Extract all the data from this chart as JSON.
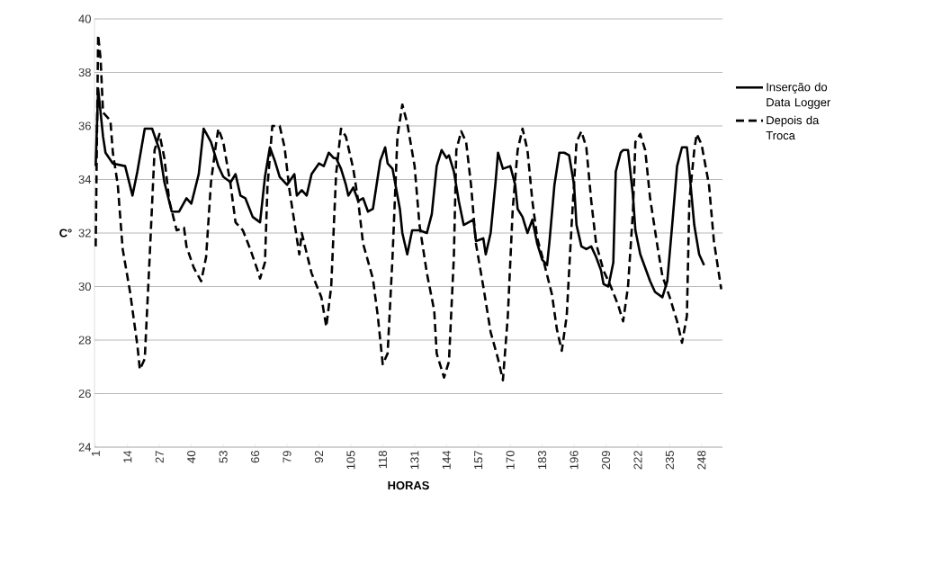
{
  "chart_data": {
    "type": "line",
    "xlabel": "HORAS",
    "ylabel": "C°",
    "xlim": [
      0.5,
      256.5
    ],
    "xticks": [
      1,
      14,
      27,
      40,
      53,
      66,
      79,
      92,
      105,
      118,
      131,
      144,
      157,
      170,
      183,
      196,
      209,
      222,
      235,
      248
    ],
    "ylim": [
      24,
      40
    ],
    "yticks": [
      24,
      26,
      28,
      30,
      32,
      34,
      36,
      38,
      40
    ],
    "grid": "y",
    "legend": "right",
    "series": [
      {
        "name": "Inserção do Data Logger",
        "color": "#000000",
        "line_style": "solid",
        "x": [
          1,
          2,
          4,
          5,
          8,
          13,
          16,
          18,
          21,
          24,
          27,
          29,
          32,
          35,
          38,
          40,
          43,
          45,
          48,
          51,
          53,
          56,
          58,
          60,
          62,
          65,
          68,
          70,
          72,
          74,
          76,
          79,
          82,
          83,
          85,
          87,
          89,
          92,
          94,
          96,
          98,
          99,
          101,
          103,
          104,
          106,
          108,
          110,
          112,
          114,
          116,
          117,
          119,
          120,
          122,
          125,
          126,
          128,
          130,
          131,
          133,
          136,
          138,
          140,
          142,
          144,
          145,
          147,
          149,
          151,
          153,
          155,
          156,
          159,
          160,
          162,
          164,
          165,
          167,
          170,
          172,
          173,
          175,
          177,
          179,
          181,
          183,
          185,
          186,
          188,
          190,
          192,
          194,
          196,
          197,
          199,
          201,
          203,
          205,
          207,
          208,
          210,
          212,
          213,
          215,
          216,
          218,
          220,
          221,
          223,
          225,
          227,
          229,
          232,
          234,
          236,
          238,
          240,
          242,
          243,
          245,
          247,
          249
        ],
        "values": [
          34.5,
          37.4,
          35.6,
          35.0,
          34.6,
          34.5,
          33.4,
          34.3,
          35.9,
          35.9,
          35.1,
          33.9,
          32.8,
          32.8,
          33.3,
          33.1,
          34.2,
          35.9,
          35.4,
          34.5,
          34.1,
          33.9,
          34.2,
          33.4,
          33.3,
          32.6,
          32.4,
          34.1,
          35.2,
          34.7,
          34.1,
          33.8,
          34.2,
          33.4,
          33.6,
          33.4,
          34.2,
          34.6,
          34.5,
          35.0,
          34.8,
          34.8,
          34.4,
          33.8,
          33.4,
          33.7,
          33.2,
          33.3,
          32.8,
          32.9,
          34.1,
          34.7,
          35.2,
          34.6,
          34.4,
          32.9,
          32.0,
          31.2,
          32.1,
          32.1,
          32.1,
          32.0,
          32.7,
          34.5,
          35.1,
          34.8,
          34.9,
          34.3,
          33.2,
          32.3,
          32.4,
          32.5,
          31.7,
          31.8,
          31.2,
          32.0,
          33.9,
          35.0,
          34.4,
          34.5,
          33.8,
          32.9,
          32.6,
          32.0,
          32.5,
          31.6,
          31.0,
          30.8,
          31.7,
          33.8,
          35.0,
          35.0,
          34.9,
          33.8,
          32.3,
          31.5,
          31.4,
          31.5,
          31.1,
          30.6,
          30.1,
          30.0,
          30.9,
          34.3,
          35.0,
          35.1,
          35.1,
          33.4,
          32.1,
          31.2,
          30.7,
          30.2,
          29.8,
          29.6,
          30.2,
          32.3,
          34.5,
          35.2,
          35.2,
          34.3,
          32.3,
          31.2,
          30.8
        ]
      },
      {
        "name": "Depois da Troca",
        "color": "#000000",
        "line_style": "dashed",
        "x": [
          1,
          2,
          3,
          4,
          7,
          8,
          10,
          12,
          15,
          18,
          19,
          21,
          23,
          25,
          27,
          29,
          31,
          34,
          37,
          38,
          41,
          44,
          46,
          48,
          50,
          51,
          53,
          56,
          58,
          61,
          64,
          67,
          68,
          70,
          71,
          73,
          76,
          78,
          80,
          84,
          85,
          89,
          93,
          95,
          97,
          99,
          101,
          103,
          106,
          108,
          110,
          114,
          116,
          118,
          120,
          122,
          124,
          126,
          128,
          131,
          133,
          136,
          139,
          140,
          143,
          145,
          147,
          148,
          150,
          152,
          154,
          156,
          159,
          162,
          165,
          167,
          169,
          171,
          173,
          175,
          177,
          179,
          181,
          184,
          187,
          189,
          191,
          193,
          195,
          197,
          199,
          201,
          203,
          205,
          208,
          211,
          214,
          216,
          218,
          220,
          221,
          223,
          225,
          227,
          230,
          232,
          235,
          238,
          240,
          242,
          243,
          245,
          246,
          248,
          251,
          253,
          256
        ],
        "values": [
          31.5,
          39.4,
          38.5,
          36.5,
          36.2,
          35.0,
          33.8,
          31.4,
          29.8,
          27.8,
          26.9,
          27.3,
          31.1,
          35.1,
          35.7,
          34.8,
          33.2,
          32.1,
          32.2,
          31.5,
          30.7,
          30.2,
          31.1,
          33.9,
          35.3,
          35.9,
          35.4,
          33.8,
          32.4,
          32.1,
          31.4,
          30.6,
          30.3,
          30.9,
          33.7,
          36.0,
          36.0,
          35.2,
          33.6,
          31.2,
          32.0,
          30.5,
          29.6,
          28.5,
          30.0,
          34.2,
          35.9,
          35.6,
          34.4,
          33.2,
          31.6,
          30.3,
          28.9,
          27.1,
          27.5,
          31.1,
          35.6,
          36.8,
          36.1,
          34.5,
          32.3,
          30.5,
          29.1,
          27.5,
          26.6,
          27.2,
          31.1,
          35.1,
          35.8,
          35.4,
          33.8,
          31.6,
          30.0,
          28.3,
          27.3,
          26.5,
          28.9,
          32.9,
          35.1,
          35.9,
          35.1,
          33.2,
          31.8,
          30.8,
          29.7,
          28.4,
          27.6,
          28.9,
          32.3,
          35.4,
          35.8,
          35.2,
          33.2,
          31.6,
          30.6,
          30.0,
          29.3,
          28.7,
          30.0,
          32.8,
          35.4,
          35.7,
          35.1,
          33.3,
          31.5,
          30.4,
          29.6,
          28.7,
          27.9,
          28.9,
          33.2,
          35.1,
          35.7,
          35.3,
          33.8,
          31.7,
          29.9
        ]
      }
    ]
  }
}
